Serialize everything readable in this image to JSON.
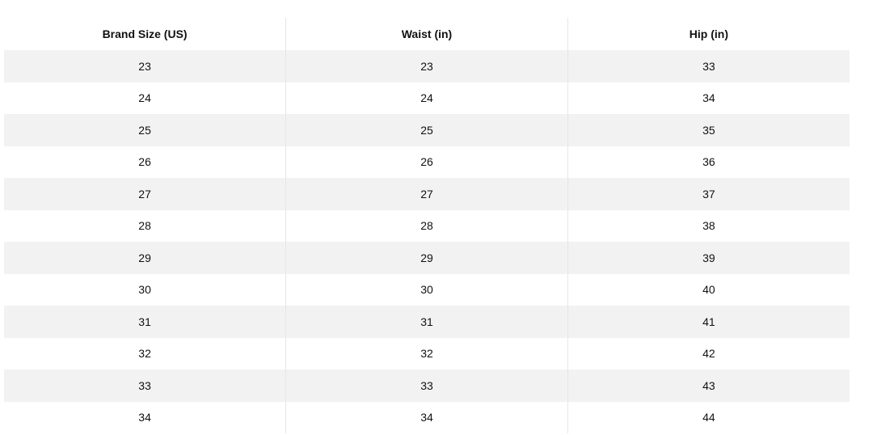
{
  "table": {
    "headers": [
      "Brand Size (US)",
      "Waist (in)",
      "Hip (in)"
    ],
    "rows": [
      [
        "23",
        "23",
        "33"
      ],
      [
        "24",
        "24",
        "34"
      ],
      [
        "25",
        "25",
        "35"
      ],
      [
        "26",
        "26",
        "36"
      ],
      [
        "27",
        "27",
        "37"
      ],
      [
        "28",
        "28",
        "38"
      ],
      [
        "29",
        "29",
        "39"
      ],
      [
        "30",
        "30",
        "40"
      ],
      [
        "31",
        "31",
        "41"
      ],
      [
        "32",
        "32",
        "42"
      ],
      [
        "33",
        "33",
        "43"
      ],
      [
        "34",
        "34",
        "44"
      ]
    ]
  },
  "colors": {
    "stripe": "#f2f2f2",
    "divider": "#e6e6e6"
  }
}
